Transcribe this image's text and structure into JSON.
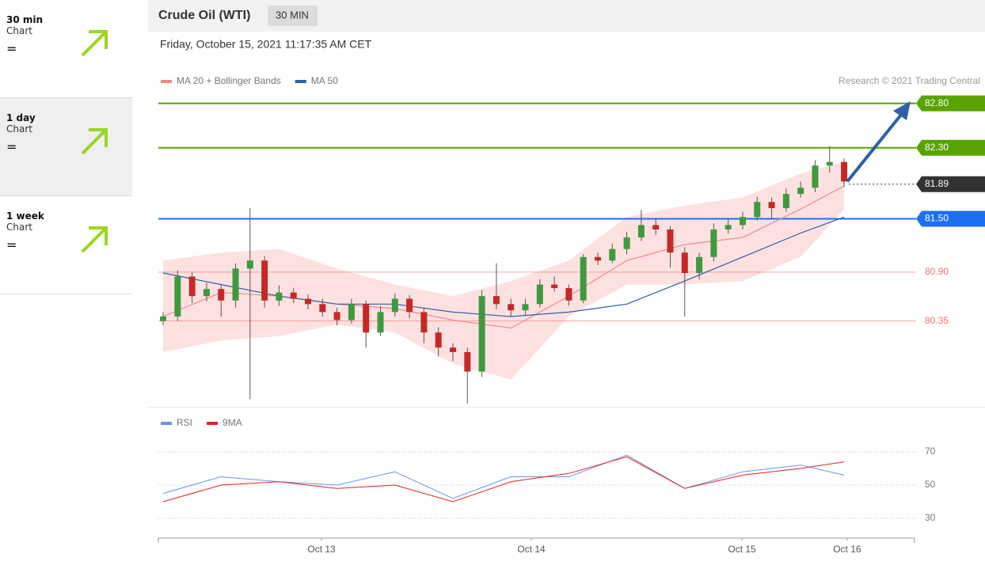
{
  "sidebar": {
    "items": [
      {
        "period": "30 min",
        "label": "Chart",
        "signal": "="
      },
      {
        "period": "1 day",
        "label": "Chart",
        "signal": "="
      },
      {
        "period": "1 week",
        "label": "Chart",
        "signal": "="
      }
    ]
  },
  "header": {
    "title": "Crude Oil (WTI)",
    "badge": "30 MIN",
    "date": "Friday, October 15, 2021 11:17:35 AM CET"
  },
  "chart_data": {
    "type": "candlestick",
    "credit": "Research © 2021 Trading Central",
    "up_color": "#3d9a3d",
    "down_color": "#c62828",
    "xlim": [
      -0.33,
      51.86
    ],
    "ylim": [
      79.42,
      82.85
    ],
    "xticks": [
      {
        "value": 10.93,
        "label": "Oct 13"
      },
      {
        "value": 25.41,
        "label": "Oct 14"
      },
      {
        "value": 39.95,
        "label": "Oct 15"
      },
      {
        "value": 47.21,
        "label": "Oct 16"
      }
    ],
    "candles": [
      [
        80.35,
        80.45,
        80.3,
        80.4
      ],
      [
        80.4,
        80.92,
        80.35,
        80.85
      ],
      [
        80.85,
        80.9,
        80.55,
        80.63
      ],
      [
        80.63,
        80.78,
        80.57,
        80.71
      ],
      [
        80.71,
        80.76,
        80.4,
        80.58
      ],
      [
        80.58,
        81.0,
        80.5,
        80.94
      ],
      [
        80.94,
        81.62,
        79.47,
        81.03
      ],
      [
        81.03,
        81.08,
        80.5,
        80.58
      ],
      [
        80.58,
        80.75,
        80.52,
        80.67
      ],
      [
        80.67,
        80.72,
        80.55,
        80.6
      ],
      [
        80.6,
        80.65,
        80.48,
        80.54
      ],
      [
        80.54,
        80.6,
        80.4,
        80.45
      ],
      [
        80.45,
        80.5,
        80.3,
        80.36
      ],
      [
        80.36,
        80.6,
        80.32,
        80.54
      ],
      [
        80.54,
        80.58,
        80.05,
        80.22
      ],
      [
        80.22,
        80.52,
        80.18,
        80.45
      ],
      [
        80.45,
        80.66,
        80.4,
        80.6
      ],
      [
        80.6,
        80.64,
        80.38,
        80.45
      ],
      [
        80.45,
        80.5,
        80.1,
        80.22
      ],
      [
        80.22,
        80.28,
        79.95,
        80.05
      ],
      [
        80.05,
        80.1,
        79.9,
        80.0
      ],
      [
        80.0,
        80.05,
        79.42,
        79.78
      ],
      [
        79.78,
        80.7,
        79.72,
        80.63
      ],
      [
        80.63,
        81.0,
        80.48,
        80.54
      ],
      [
        80.54,
        80.6,
        80.4,
        80.47
      ],
      [
        80.47,
        80.6,
        80.42,
        80.54
      ],
      [
        80.54,
        80.82,
        80.5,
        80.76
      ],
      [
        80.76,
        80.85,
        80.68,
        80.72
      ],
      [
        80.72,
        80.76,
        80.52,
        80.58
      ],
      [
        80.58,
        81.1,
        80.55,
        81.07
      ],
      [
        81.07,
        81.12,
        80.98,
        81.03
      ],
      [
        81.03,
        81.22,
        81.0,
        81.16
      ],
      [
        81.16,
        81.35,
        81.1,
        81.29
      ],
      [
        81.29,
        81.6,
        81.25,
        81.43
      ],
      [
        81.43,
        81.5,
        81.32,
        81.38
      ],
      [
        81.38,
        81.42,
        80.95,
        81.12
      ],
      [
        81.12,
        81.18,
        80.4,
        80.89
      ],
      [
        80.89,
        81.12,
        80.82,
        81.07
      ],
      [
        81.07,
        81.45,
        81.02,
        81.38
      ],
      [
        81.38,
        81.5,
        81.33,
        81.43
      ],
      [
        81.43,
        81.58,
        81.38,
        81.52
      ],
      [
        81.52,
        81.75,
        81.48,
        81.69
      ],
      [
        81.69,
        81.74,
        81.5,
        81.62
      ],
      [
        81.62,
        81.84,
        81.58,
        81.78
      ],
      [
        81.78,
        81.92,
        81.74,
        81.85
      ],
      [
        81.85,
        82.16,
        81.8,
        82.1
      ],
      [
        82.1,
        82.32,
        82.02,
        82.14
      ],
      [
        82.14,
        82.18,
        81.86,
        81.92
      ]
    ],
    "line_x": [
      0,
      4,
      8,
      12,
      16,
      20,
      24,
      28,
      32,
      36,
      40,
      44,
      47
    ],
    "band": {
      "fill": "#fde1e1",
      "upper": [
        81.03,
        81.12,
        81.16,
        80.94,
        80.76,
        80.63,
        80.8,
        81.03,
        81.52,
        81.65,
        81.74,
        82.01,
        82.14
      ],
      "lower": [
        80.0,
        80.13,
        80.18,
        80.31,
        80.22,
        79.87,
        79.69,
        80.4,
        80.76,
        80.76,
        80.8,
        81.07,
        81.61
      ]
    },
    "overlays": [
      {
        "name": "MA 20 + Bollinger Bands",
        "color": "#f08a8a",
        "values": [
          80.4,
          80.67,
          80.63,
          80.54,
          80.49,
          80.36,
          80.27,
          80.63,
          81.03,
          81.21,
          81.29,
          81.61,
          81.87
        ]
      },
      {
        "name": "MA 50",
        "color": "#2f5fa8",
        "values": [
          80.89,
          80.76,
          80.63,
          80.54,
          80.54,
          80.45,
          80.4,
          80.45,
          80.54,
          80.8,
          81.07,
          81.34,
          81.52
        ]
      }
    ],
    "levels": [
      {
        "value": 82.8,
        "label": "82.80",
        "color": "#58a300",
        "line": "solid",
        "tag": "box"
      },
      {
        "value": 82.3,
        "label": "82.30",
        "color": "#58a300",
        "line": "solid",
        "tag": "box"
      },
      {
        "value": 81.89,
        "label": "81.89",
        "color": "#333333",
        "line": "dotted",
        "tag": "box"
      },
      {
        "value": 81.5,
        "label": "81.50",
        "color": "#1e6ff0",
        "line": "solid",
        "tag": "box"
      },
      {
        "value": 80.9,
        "label": "80.90",
        "color": "#f07070",
        "line": "solid",
        "tag": "text"
      },
      {
        "value": 80.35,
        "label": "80.35",
        "color": "#f07070",
        "line": "solid",
        "tag": "text"
      }
    ],
    "rsi": {
      "ylim": [
        20,
        80
      ],
      "yticks": [
        70,
        50,
        30
      ],
      "series": [
        {
          "name": "RSI",
          "color": "#6f93e6",
          "values": [
            45,
            55,
            52,
            50,
            58,
            42,
            55,
            55,
            68,
            48,
            58,
            62,
            56
          ]
        },
        {
          "name": "9MA",
          "color": "#e82020",
          "values": [
            40,
            50,
            52,
            48,
            50,
            40,
            52,
            57,
            67,
            48,
            56,
            60,
            64
          ]
        }
      ]
    }
  }
}
